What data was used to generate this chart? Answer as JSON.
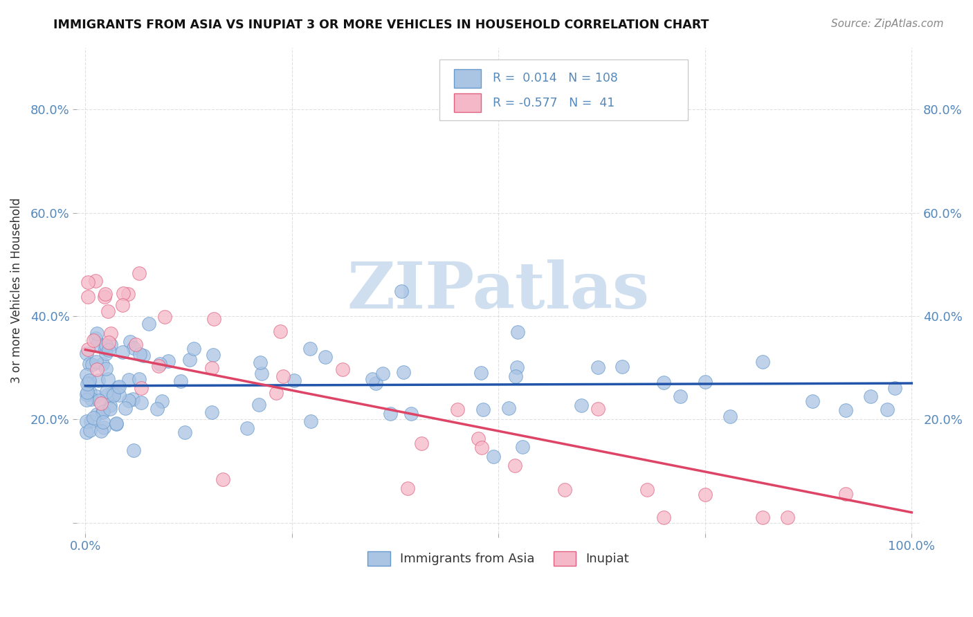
{
  "title": "IMMIGRANTS FROM ASIA VS INUPIAT 3 OR MORE VEHICLES IN HOUSEHOLD CORRELATION CHART",
  "source": "Source: ZipAtlas.com",
  "ylabel": "3 or more Vehicles in Household",
  "legend_blue_label": "Immigrants from Asia",
  "legend_pink_label": "Inupiat",
  "blue_R": "0.014",
  "blue_N": "108",
  "pink_R": "-0.577",
  "pink_N": "41",
  "blue_scatter_color": "#aac4e4",
  "blue_edge_color": "#6699cc",
  "pink_scatter_color": "#f5b8c8",
  "pink_edge_color": "#e06080",
  "blue_line_color": "#2255aa",
  "pink_line_color": "#dd4466",
  "watermark_color": "#d0dff0",
  "grid_color": "#cccccc",
  "tick_color": "#5588bb",
  "title_color": "#111111",
  "source_color": "#888888",
  "ylabel_color": "#333333",
  "blue_seed": 12,
  "pink_seed": 7,
  "n_blue": 108,
  "n_pink": 41
}
